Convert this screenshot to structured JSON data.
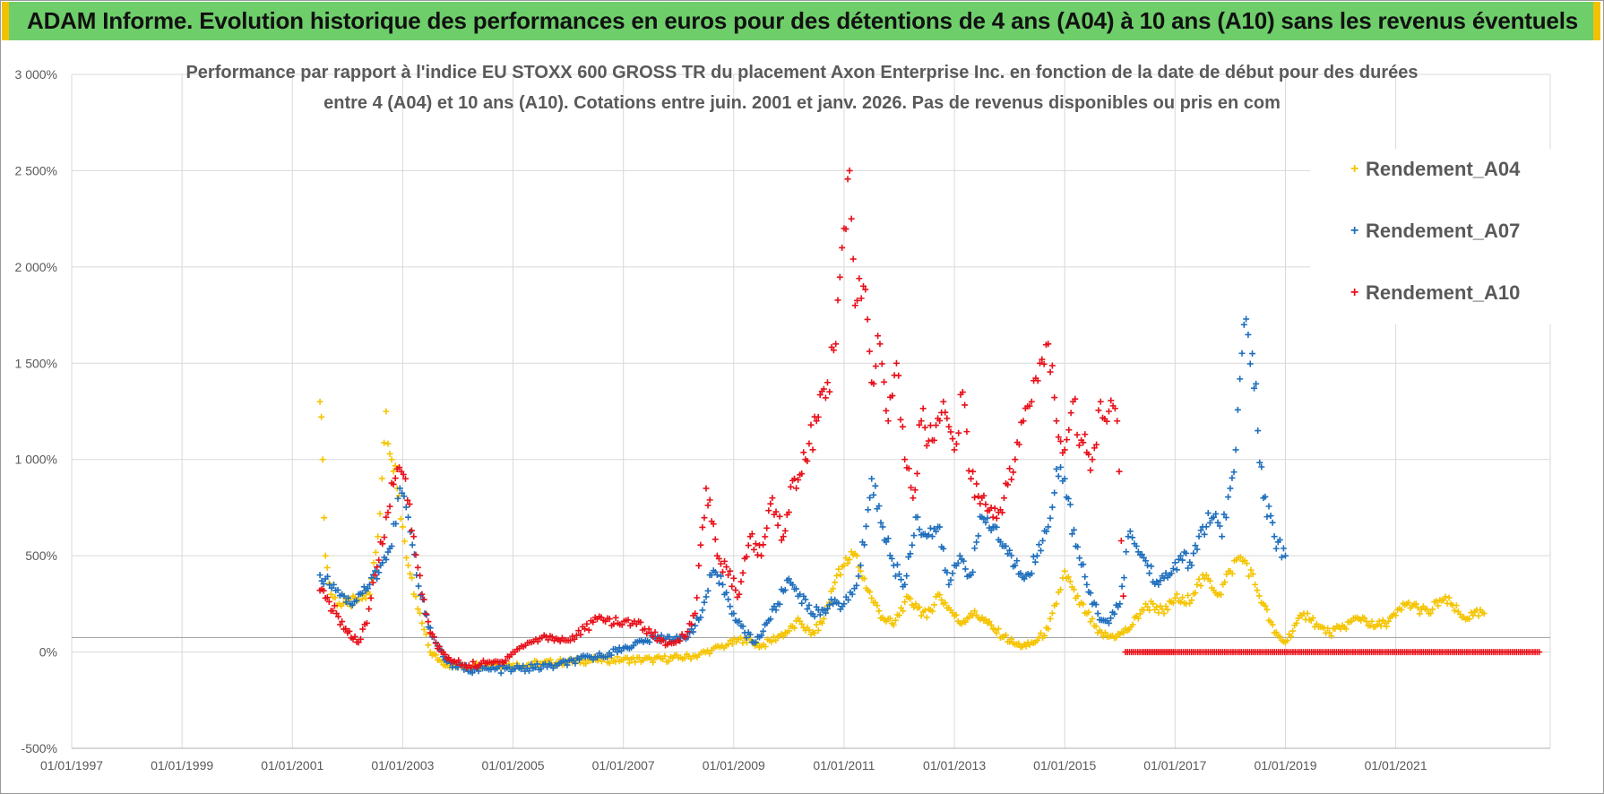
{
  "header": {
    "title": "ADAM Informe. Evolution historique des performances en euros pour des détentions de 4 ans (A04) à 10 ans (A10) sans les revenus éventuels"
  },
  "chart_data": {
    "type": "scatter",
    "title_line1": "Performance par rapport à l'indice EU STOXX 600 GROSS TR  du placement Axon Enterprise Inc. en fonction de la date de début pour des durées",
    "title_line2": "entre 4 (A04) et 10 ans (A10). Cotations entre juin. 2001 et janv. 2026. Pas de revenus disponibles ou pris en com",
    "xlabel": "",
    "ylabel": "",
    "xlim": [
      1997.0,
      2023.8
    ],
    "ylim": [
      -500,
      3000
    ],
    "x_tick_values": [
      1997,
      1999,
      2001,
      2003,
      2005,
      2007,
      2009,
      2011,
      2013,
      2015,
      2017,
      2019,
      2021
    ],
    "x_tick_labels": [
      "01/01/1997",
      "01/01/1999",
      "01/01/2001",
      "01/01/2003",
      "01/01/2005",
      "01/01/2007",
      "01/01/2009",
      "01/01/2011",
      "01/01/2013",
      "01/01/2015",
      "01/01/2017",
      "01/01/2019",
      "01/01/2021"
    ],
    "y_tick_values": [
      3000,
      2500,
      2000,
      1500,
      1000,
      500,
      0,
      -500
    ],
    "y_tick_labels": [
      "3 000%",
      "2 500%",
      "2 000%",
      "1 500%",
      "1 000%",
      "500%",
      "0%",
      "-500%"
    ],
    "grid": true,
    "legend_position": "top-right",
    "series": [
      {
        "name": "Rendement_A04",
        "color": "#f5c400",
        "marker": "+",
        "x": [
          2001.5,
          2001.55,
          2001.6,
          2001.7,
          2001.85,
          2002.0,
          2002.2,
          2002.4,
          2002.55,
          2002.7,
          2002.8,
          2002.9,
          2003.0,
          2003.1,
          2003.2,
          2003.35,
          2003.5,
          2003.7,
          2004.0,
          2004.3,
          2004.6,
          2005.0,
          2005.5,
          2006.0,
          2006.5,
          2007.0,
          2007.5,
          2008.0,
          2008.3,
          2008.6,
          2008.9,
          2009.2,
          2009.5,
          2009.8,
          2010.0,
          2010.2,
          2010.4,
          2010.6,
          2010.8,
          2010.9,
          2011.0,
          2011.1,
          2011.2,
          2011.3,
          2011.5,
          2011.7,
          2011.9,
          2012.1,
          2012.3,
          2012.5,
          2012.7,
          2012.9,
          2013.1,
          2013.3,
          2013.5,
          2013.7,
          2013.9,
          2014.1,
          2014.3,
          2014.5,
          2014.7,
          2014.85,
          2015.0,
          2015.2,
          2015.4,
          2015.6,
          2015.8,
          2016.0,
          2016.2,
          2016.4,
          2016.6,
          2016.8,
          2017.0,
          2017.2,
          2017.4,
          2017.6,
          2017.8,
          2018.0,
          2018.15,
          2018.3,
          2018.45,
          2018.6,
          2018.8,
          2019.0,
          2019.2,
          2019.4,
          2019.6,
          2019.8,
          2020.0,
          2020.2,
          2020.4,
          2020.6,
          2020.8,
          2021.0,
          2021.2,
          2021.4,
          2021.6,
          2021.8,
          2022.0,
          2022.2,
          2022.4,
          2022.6
        ],
        "y": [
          1300,
          1000,
          500,
          300,
          250,
          250,
          270,
          300,
          600,
          1250,
          1000,
          850,
          650,
          450,
          300,
          150,
          0,
          -50,
          -80,
          -70,
          -60,
          -70,
          -60,
          -50,
          -40,
          -40,
          -40,
          -30,
          -20,
          10,
          40,
          70,
          30,
          80,
          110,
          160,
          90,
          150,
          330,
          430,
          450,
          480,
          510,
          420,
          280,
          180,
          140,
          260,
          250,
          180,
          300,
          230,
          150,
          200,
          180,
          120,
          80,
          40,
          30,
          60,
          120,
          250,
          420,
          280,
          200,
          100,
          80,
          90,
          130,
          220,
          250,
          200,
          280,
          250,
          350,
          380,
          300,
          420,
          490,
          460,
          350,
          250,
          100,
          50,
          150,
          200,
          130,
          100,
          120,
          160,
          180,
          130,
          150,
          190,
          250,
          230,
          200,
          270,
          250,
          180,
          190,
          200
        ]
      },
      {
        "name": "Rendement_A07",
        "color": "#1f6fbd",
        "marker": "+",
        "x": [
          2001.5,
          2001.6,
          2001.75,
          2001.9,
          2002.05,
          2002.2,
          2002.4,
          2002.6,
          2002.8,
          2002.95,
          2003.1,
          2003.25,
          2003.4,
          2003.6,
          2003.8,
          2004.0,
          2004.3,
          2004.6,
          2005.0,
          2005.4,
          2005.8,
          2006.2,
          2006.6,
          2007.0,
          2007.4,
          2007.8,
          2008.0,
          2008.2,
          2008.4,
          2008.6,
          2008.8,
          2009.0,
          2009.2,
          2009.4,
          2009.6,
          2009.8,
          2010.0,
          2010.2,
          2010.4,
          2010.6,
          2010.8,
          2011.0,
          2011.15,
          2011.3,
          2011.5,
          2011.7,
          2011.9,
          2012.1,
          2012.3,
          2012.5,
          2012.7,
          2012.9,
          2013.1,
          2013.3,
          2013.5,
          2013.7,
          2013.9,
          2014.1,
          2014.3,
          2014.5,
          2014.7,
          2014.85,
          2015.0,
          2015.2,
          2015.4,
          2015.6,
          2015.8,
          2016.0,
          2016.15,
          2016.3,
          2016.5,
          2016.7,
          2016.9,
          2017.1,
          2017.3,
          2017.5,
          2017.7,
          2017.85,
          2018.0,
          2018.1,
          2018.25,
          2018.4,
          2018.6,
          2018.8,
          2019.0
        ],
        "y": [
          400,
          380,
          350,
          300,
          250,
          300,
          350,
          450,
          550,
          850,
          700,
          400,
          200,
          50,
          -50,
          -80,
          -90,
          -90,
          -90,
          -80,
          -70,
          -40,
          -20,
          20,
          60,
          80,
          60,
          100,
          180,
          400,
          350,
          200,
          100,
          50,
          150,
          250,
          380,
          300,
          200,
          220,
          250,
          250,
          300,
          450,
          900,
          650,
          450,
          350,
          700,
          600,
          650,
          350,
          500,
          400,
          700,
          650,
          550,
          450,
          400,
          500,
          650,
          950,
          900,
          550,
          350,
          200,
          150,
          250,
          600,
          550,
          450,
          350,
          400,
          500,
          450,
          650,
          700,
          600,
          850,
          1050,
          1700,
          1550,
          800,
          600,
          500
        ]
      },
      {
        "name": "Rendement_A10",
        "color": "#e8101a",
        "marker": "+",
        "x": [
          2001.5,
          2001.6,
          2001.8,
          2002.0,
          2002.2,
          2002.35,
          2002.5,
          2002.7,
          2002.9,
          2003.05,
          2003.2,
          2003.35,
          2003.5,
          2003.7,
          2003.9,
          2004.2,
          2004.5,
          2004.8,
          2005.0,
          2005.3,
          2005.6,
          2006.0,
          2006.3,
          2006.6,
          2006.9,
          2007.2,
          2007.5,
          2007.8,
          2008.1,
          2008.3,
          2008.5,
          2008.7,
          2008.9,
          2009.1,
          2009.3,
          2009.5,
          2009.7,
          2009.9,
          2010.1,
          2010.3,
          2010.5,
          2010.7,
          2010.85,
          2011.0,
          2011.1,
          2011.2,
          2011.35,
          2011.5,
          2011.65,
          2011.8,
          2011.95,
          2012.1,
          2012.25,
          2012.4,
          2012.6,
          2012.8,
          2013.0,
          2013.15,
          2013.3,
          2013.5,
          2013.7,
          2013.9,
          2014.1,
          2014.25,
          2014.4,
          2014.55,
          2014.7,
          2014.85,
          2015.0,
          2015.15,
          2015.3,
          2015.5,
          2015.65,
          2015.8,
          2015.95,
          2016.1,
          2016.25,
          2016.4,
          2016.6,
          2016.8,
          2017.0,
          2017.3,
          2017.6,
          2017.9,
          2018.2,
          2018.5,
          2018.8,
          2019.1,
          2019.4,
          2019.7,
          2020.0,
          2020.3,
          2020.6,
          2020.9,
          2021.2,
          2021.5,
          2021.8,
          2022.1,
          2022.4,
          2022.7,
          2023.0,
          2023.3,
          2023.6
        ],
        "y": [
          320,
          280,
          200,
          100,
          50,
          150,
          400,
          700,
          950,
          900,
          600,
          300,
          100,
          0,
          -50,
          -70,
          -60,
          -50,
          0,
          50,
          80,
          60,
          120,
          180,
          150,
          160,
          100,
          40,
          80,
          200,
          850,
          500,
          400,
          300,
          600,
          500,
          800,
          600,
          900,
          1000,
          1200,
          1400,
          1600,
          2200,
          2500,
          1800,
          1900,
          1400,
          1600,
          1200,
          1500,
          1000,
          800,
          1200,
          1100,
          1300,
          1050,
          1350,
          900,
          800,
          700,
          800,
          1000,
          1200,
          1300,
          1500,
          1600,
          1200,
          1050,
          1300,
          1100,
          1000,
          1300,
          1250,
          1200,
          0,
          0,
          0,
          0,
          0,
          0,
          0,
          0,
          0,
          0,
          0,
          0,
          0,
          0,
          0,
          0,
          0,
          0,
          0,
          0,
          0,
          0,
          0,
          0,
          0,
          0,
          0,
          0
        ]
      }
    ]
  }
}
